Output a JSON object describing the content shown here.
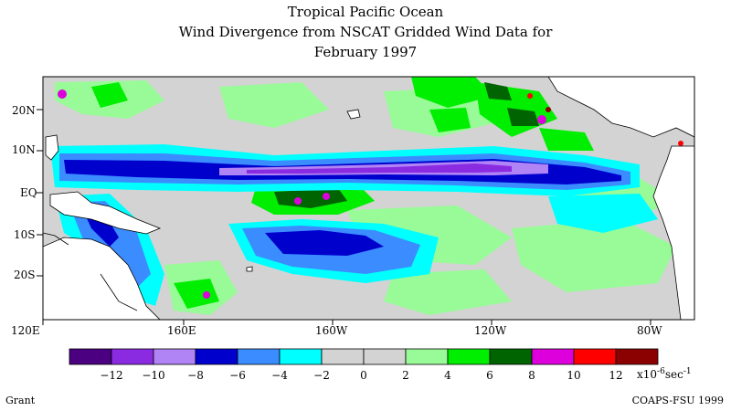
{
  "title": {
    "line1": "Tropical Pacific Ocean",
    "line2": "Wind Divergence from NSCAT Gridded Wind Data for",
    "line3": "February 1997"
  },
  "map": {
    "lat_labels": [
      "20N",
      "10N",
      "EQ",
      "10S",
      "20S"
    ],
    "lon_labels": [
      "120E",
      "160E",
      "160W",
      "120W",
      "80W"
    ]
  },
  "colorbar": {
    "ticks": [
      "-12",
      "-10",
      "-8",
      "-6",
      "-4",
      "-2",
      "0",
      "2",
      "4",
      "6",
      "8",
      "10",
      "12"
    ],
    "unit_base": "x10",
    "unit_exp": "-6",
    "unit_tail": "sec",
    "unit_tail_exp": "-1",
    "colors": [
      "#4b0082",
      "#8a2be2",
      "#b084f5",
      "#0000cd",
      "#3a8cff",
      "#00ffff",
      "#d3d3d3",
      "#d3d3d3",
      "#98fb98",
      "#00ee00",
      "#006400",
      "#dd00dd",
      "#ff0000",
      "#8b0000"
    ]
  },
  "footer": {
    "author": "Grant",
    "credit": "COAPS-FSU 1999"
  }
}
